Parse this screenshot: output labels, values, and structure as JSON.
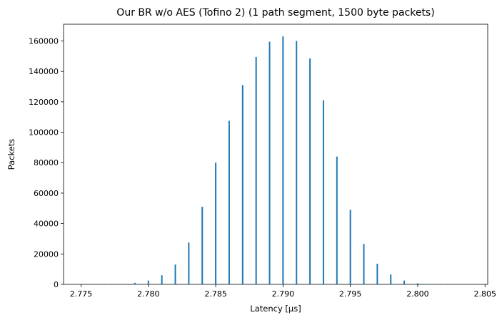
{
  "chart_data": {
    "type": "bar",
    "title": "Our BR w/o AES (Tofino 2) (1 path segment, 1500 byte packets)",
    "xlabel": "Latency [µs]",
    "ylabel": "Packets",
    "xlim": [
      2.7737,
      2.8052
    ],
    "ylim": [
      0,
      171000
    ],
    "xticks": [
      2.775,
      2.78,
      2.785,
      2.79,
      2.795,
      2.8,
      2.805
    ],
    "xtick_labels": [
      "2.775",
      "2.780",
      "2.785",
      "2.790",
      "2.795",
      "2.800",
      "2.805"
    ],
    "yticks": [
      0,
      20000,
      40000,
      60000,
      80000,
      100000,
      120000,
      140000,
      160000
    ],
    "ytick_labels": [
      "0",
      "20000",
      "40000",
      "60000",
      "80000",
      "100000",
      "120000",
      "140000",
      "160000"
    ],
    "bar_color": "#1f77b4",
    "grid": false,
    "bins": [
      {
        "x": 2.777,
        "value": 100
      },
      {
        "x": 2.778,
        "value": 300
      },
      {
        "x": 2.779,
        "value": 1000
      },
      {
        "x": 2.78,
        "value": 2500
      },
      {
        "x": 2.781,
        "value": 6000
      },
      {
        "x": 2.782,
        "value": 13000
      },
      {
        "x": 2.783,
        "value": 27500
      },
      {
        "x": 2.784,
        "value": 51000
      },
      {
        "x": 2.785,
        "value": 80000
      },
      {
        "x": 2.786,
        "value": 107500
      },
      {
        "x": 2.787,
        "value": 131000
      },
      {
        "x": 2.788,
        "value": 149500
      },
      {
        "x": 2.789,
        "value": 159500
      },
      {
        "x": 2.79,
        "value": 163000
      },
      {
        "x": 2.791,
        "value": 160000
      },
      {
        "x": 2.792,
        "value": 148500
      },
      {
        "x": 2.793,
        "value": 121000
      },
      {
        "x": 2.794,
        "value": 84000
      },
      {
        "x": 2.795,
        "value": 49000
      },
      {
        "x": 2.796,
        "value": 26500
      },
      {
        "x": 2.797,
        "value": 13500
      },
      {
        "x": 2.798,
        "value": 6500
      },
      {
        "x": 2.799,
        "value": 2500
      },
      {
        "x": 2.8,
        "value": 700
      },
      {
        "x": 2.801,
        "value": 200
      },
      {
        "x": 2.802,
        "value": 50
      }
    ]
  }
}
